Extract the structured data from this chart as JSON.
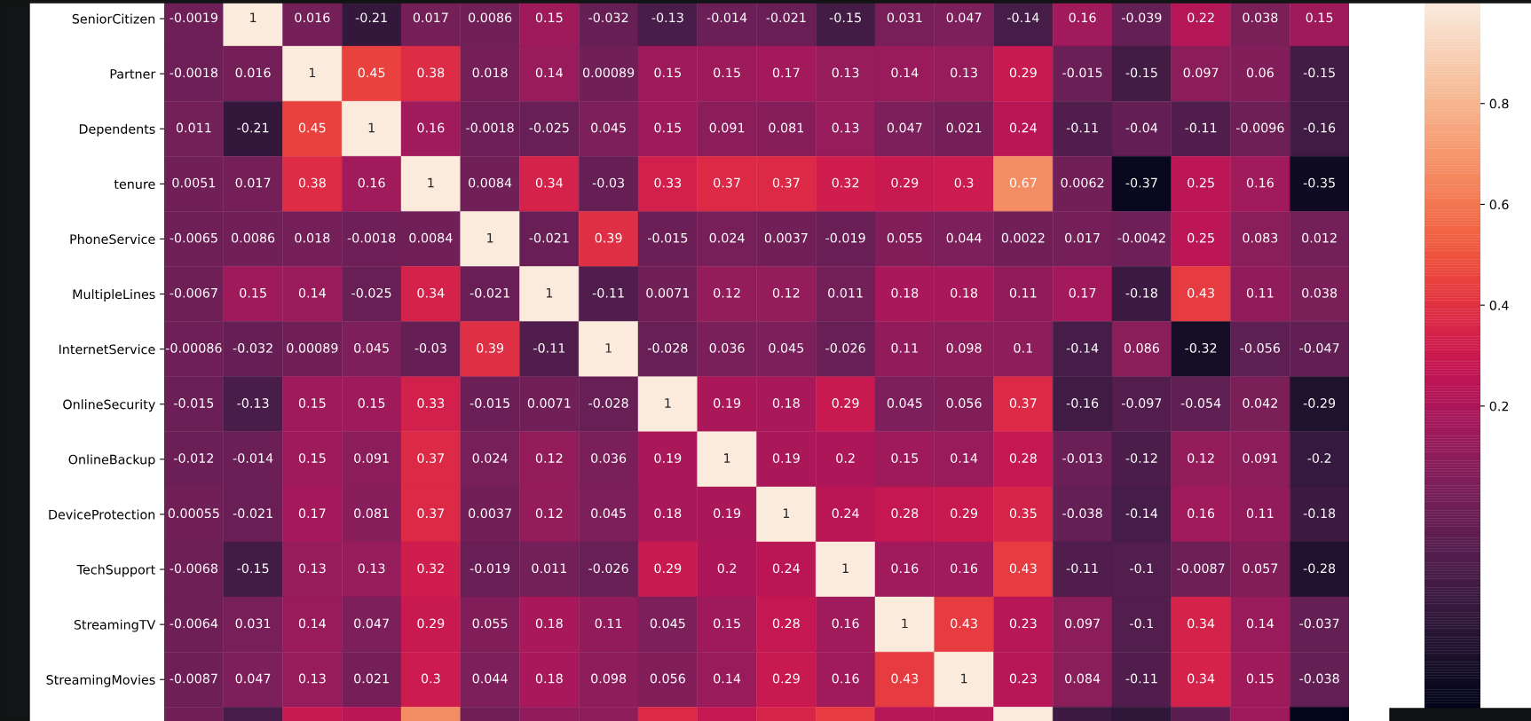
{
  "chart_data": {
    "type": "heatmap",
    "categories": [
      null,
      null,
      null,
      null,
      null,
      null,
      null,
      null,
      null,
      null,
      null,
      null,
      null,
      null,
      null,
      null,
      null,
      null,
      null,
      null
    ],
    "y_categories": [
      "SeniorCitizen",
      "Partner",
      "Dependents",
      "tenure",
      "PhoneService",
      "MultipleLines",
      "InternetService",
      "OnlineSecurity",
      "OnlineBackup",
      "DeviceProtection",
      "TechSupport",
      "StreamingTV",
      "StreamingMovies",
      null
    ],
    "cells": [
      [
        -0.0019,
        1,
        0.016,
        -0.21,
        0.017,
        0.0086,
        0.15,
        -0.032,
        -0.13,
        -0.014,
        -0.021,
        -0.15,
        0.031,
        0.047,
        -0.14,
        0.16,
        -0.039,
        0.22,
        0.038,
        0.15
      ],
      [
        -0.0018,
        0.016,
        1,
        0.45,
        0.38,
        0.018,
        0.14,
        0.00089,
        0.15,
        0.15,
        0.17,
        0.13,
        0.14,
        0.13,
        0.29,
        -0.015,
        -0.15,
        0.097,
        0.06,
        -0.15
      ],
      [
        0.011,
        -0.21,
        0.45,
        1,
        0.16,
        -0.0018,
        -0.025,
        0.045,
        0.15,
        0.091,
        0.081,
        0.13,
        0.047,
        0.021,
        0.24,
        -0.11,
        -0.04,
        -0.11,
        -0.0096,
        -0.16
      ],
      [
        0.0051,
        0.017,
        0.38,
        0.16,
        1,
        0.0084,
        0.34,
        -0.03,
        0.33,
        0.37,
        0.37,
        0.32,
        0.29,
        0.3,
        0.67,
        0.0062,
        -0.37,
        0.25,
        0.16,
        -0.35
      ],
      [
        -0.0065,
        0.0086,
        0.018,
        -0.0018,
        0.0084,
        1,
        -0.021,
        0.39,
        -0.015,
        0.024,
        0.0037,
        -0.019,
        0.055,
        0.044,
        0.0022,
        0.017,
        -0.0042,
        0.25,
        0.083,
        0.012
      ],
      [
        -0.0067,
        0.15,
        0.14,
        -0.025,
        0.34,
        -0.021,
        1,
        -0.11,
        0.0071,
        0.12,
        0.12,
        0.011,
        0.18,
        0.18,
        0.11,
        0.17,
        -0.18,
        0.43,
        0.11,
        0.038
      ],
      [
        -0.00086,
        -0.032,
        0.00089,
        0.045,
        -0.03,
        0.39,
        -0.11,
        1,
        -0.028,
        0.036,
        0.045,
        -0.026,
        0.11,
        0.098,
        0.1,
        -0.14,
        0.086,
        -0.32,
        -0.056,
        -0.047
      ],
      [
        -0.015,
        -0.13,
        0.15,
        0.15,
        0.33,
        -0.015,
        0.0071,
        -0.028,
        1,
        0.19,
        0.18,
        0.29,
        0.045,
        0.056,
        0.37,
        -0.16,
        -0.097,
        -0.054,
        0.042,
        -0.29
      ],
      [
        -0.012,
        -0.014,
        0.15,
        0.091,
        0.37,
        0.024,
        0.12,
        0.036,
        0.19,
        1,
        0.19,
        0.2,
        0.15,
        0.14,
        0.28,
        -0.013,
        -0.12,
        0.12,
        0.091,
        -0.2
      ],
      [
        0.00055,
        -0.021,
        0.17,
        0.081,
        0.37,
        0.0037,
        0.12,
        0.045,
        0.18,
        0.19,
        1,
        0.24,
        0.28,
        0.29,
        0.35,
        -0.038,
        -0.14,
        0.16,
        0.11,
        -0.18
      ],
      [
        -0.0068,
        -0.15,
        0.13,
        0.13,
        0.32,
        -0.019,
        0.011,
        -0.026,
        0.29,
        0.2,
        0.24,
        1,
        0.16,
        0.16,
        0.43,
        -0.11,
        -0.1,
        -0.0087,
        0.057,
        -0.28
      ],
      [
        -0.0064,
        0.031,
        0.14,
        0.047,
        0.29,
        0.055,
        0.18,
        0.11,
        0.045,
        0.15,
        0.28,
        0.16,
        1,
        0.43,
        0.23,
        0.097,
        -0.1,
        0.34,
        0.14,
        -0.037
      ],
      [
        -0.0087,
        0.047,
        0.13,
        0.021,
        0.3,
        0.044,
        0.18,
        0.098,
        0.056,
        0.14,
        0.29,
        0.16,
        0.43,
        1,
        0.23,
        0.084,
        -0.11,
        0.34,
        0.15,
        -0.038
      ],
      [
        0,
        -0.14,
        0.29,
        0.24,
        0.67,
        0,
        0.11,
        0.1,
        0.37,
        0.28,
        0.35,
        0.43,
        0.23,
        0.23,
        1,
        -0.18,
        -0.23,
        -0.07,
        0.15,
        -0.4
      ]
    ],
    "cell_labels": [
      [
        "-0.0019",
        "1",
        "0.016",
        "-0.21",
        "0.017",
        "0.0086",
        "0.15",
        "-0.032",
        "-0.13",
        "-0.014",
        "-0.021",
        "-0.15",
        "0.031",
        "0.047",
        "-0.14",
        "0.16",
        "-0.039",
        "0.22",
        "0.038",
        "0.15"
      ],
      [
        "-0.0018",
        "0.016",
        "1",
        "0.45",
        "0.38",
        "0.018",
        "0.14",
        "0.00089",
        "0.15",
        "0.15",
        "0.17",
        "0.13",
        "0.14",
        "0.13",
        "0.29",
        "-0.015",
        "-0.15",
        "0.097",
        "0.06",
        "-0.15"
      ],
      [
        "0.011",
        "-0.21",
        "0.45",
        "1",
        "0.16",
        "-0.0018",
        "-0.025",
        "0.045",
        "0.15",
        "0.091",
        "0.081",
        "0.13",
        "0.047",
        "0.021",
        "0.24",
        "-0.11",
        "-0.04",
        "-0.11",
        "-0.0096",
        "-0.16"
      ],
      [
        "0.0051",
        "0.017",
        "0.38",
        "0.16",
        "1",
        "0.0084",
        "0.34",
        "-0.03",
        "0.33",
        "0.37",
        "0.37",
        "0.32",
        "0.29",
        "0.3",
        "0.67",
        "0.0062",
        "-0.37",
        "0.25",
        "0.16",
        "-0.35"
      ],
      [
        "-0.0065",
        "0.0086",
        "0.018",
        "-0.0018",
        "0.0084",
        "1",
        "-0.021",
        "0.39",
        "-0.015",
        "0.024",
        "0.0037",
        "-0.019",
        "0.055",
        "0.044",
        "0.0022",
        "0.017",
        "-0.0042",
        "0.25",
        "0.083",
        "0.012"
      ],
      [
        "-0.0067",
        "0.15",
        "0.14",
        "-0.025",
        "0.34",
        "-0.021",
        "1",
        "-0.11",
        "0.0071",
        "0.12",
        "0.12",
        "0.011",
        "0.18",
        "0.18",
        "0.11",
        "0.17",
        "-0.18",
        "0.43",
        "0.11",
        "0.038"
      ],
      [
        "-0.00086",
        "-0.032",
        "0.00089",
        "0.045",
        "-0.03",
        "0.39",
        "-0.11",
        "1",
        "-0.028",
        "0.036",
        "0.045",
        "-0.026",
        "0.11",
        "0.098",
        "0.1",
        "-0.14",
        "0.086",
        "-0.32",
        "-0.056",
        "-0.047"
      ],
      [
        "-0.015",
        "-0.13",
        "0.15",
        "0.15",
        "0.33",
        "-0.015",
        "0.0071",
        "-0.028",
        "1",
        "0.19",
        "0.18",
        "0.29",
        "0.045",
        "0.056",
        "0.37",
        "-0.16",
        "-0.097",
        "-0.054",
        "0.042",
        "-0.29"
      ],
      [
        "-0.012",
        "-0.014",
        "0.15",
        "0.091",
        "0.37",
        "0.024",
        "0.12",
        "0.036",
        "0.19",
        "1",
        "0.19",
        "0.2",
        "0.15",
        "0.14",
        "0.28",
        "-0.013",
        "-0.12",
        "0.12",
        "0.091",
        "-0.2"
      ],
      [
        "0.00055",
        "-0.021",
        "0.17",
        "0.081",
        "0.37",
        "0.0037",
        "0.12",
        "0.045",
        "0.18",
        "0.19",
        "1",
        "0.24",
        "0.28",
        "0.29",
        "0.35",
        "-0.038",
        "-0.14",
        "0.16",
        "0.11",
        "-0.18"
      ],
      [
        "-0.0068",
        "-0.15",
        "0.13",
        "0.13",
        "0.32",
        "-0.019",
        "0.011",
        "-0.026",
        "0.29",
        "0.2",
        "0.24",
        "1",
        "0.16",
        "0.16",
        "0.43",
        "-0.11",
        "-0.1",
        "-0.0087",
        "0.057",
        "-0.28"
      ],
      [
        "-0.0064",
        "0.031",
        "0.14",
        "0.047",
        "0.29",
        "0.055",
        "0.18",
        "0.11",
        "0.045",
        "0.15",
        "0.28",
        "0.16",
        "1",
        "0.43",
        "0.23",
        "0.097",
        "-0.1",
        "0.34",
        "0.14",
        "-0.037"
      ],
      [
        "-0.0087",
        "0.047",
        "0.13",
        "0.021",
        "0.3",
        "0.044",
        "0.18",
        "0.098",
        "0.056",
        "0.14",
        "0.29",
        "0.16",
        "0.43",
        "1",
        "0.23",
        "0.084",
        "-0.11",
        "0.34",
        "0.15",
        "-0.038"
      ],
      [
        null,
        null,
        null,
        null,
        null,
        null,
        null,
        null,
        null,
        null,
        null,
        null,
        null,
        null,
        null,
        null,
        null,
        null,
        null,
        null
      ]
    ],
    "clim": [
      -0.4,
      1
    ],
    "cticks": [
      0.2,
      0.4,
      0.6,
      0.8
    ],
    "tick_labels": "y"
  }
}
